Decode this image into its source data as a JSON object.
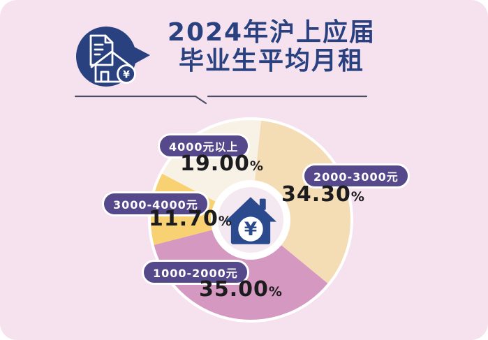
{
  "panel": {
    "background": "#f6e2ee",
    "accent_navy": "#2a4180",
    "pill_purple": "#55498b"
  },
  "header": {
    "title_line1": "2024年沪上应届",
    "title_line2": "毕业生平均月租",
    "icon": {
      "name": "document-house-yen-bubble",
      "bubble_color": "#2a4180",
      "yen_symbol": "¥"
    }
  },
  "chart_data": {
    "type": "pie",
    "donut": true,
    "title": "2024年沪上应届毕业生平均月租",
    "start_angle_deg": 6,
    "direction": "clockwise",
    "percent_suffix": "%",
    "center_icon": "house-yen",
    "center_symbol": "¥",
    "outer_ring_color": "#ffffff",
    "inner_disc_color": "#f4e8f1",
    "house_color": "#2b4a8d",
    "slices": [
      {
        "label": "2000-3000元",
        "value": 34.3,
        "value_display": "34.30",
        "color": "#f4dcb4"
      },
      {
        "label": "1000-2000元",
        "value": 35.0,
        "value_display": "35.00",
        "color": "#d598c0"
      },
      {
        "label": "3000-4000元",
        "value": 11.7,
        "value_display": "11.70",
        "color": "#f8d172"
      },
      {
        "label": "4000元以上",
        "value": 19.0,
        "value_display": "19.00",
        "color": "#f8f1e6"
      }
    ]
  }
}
